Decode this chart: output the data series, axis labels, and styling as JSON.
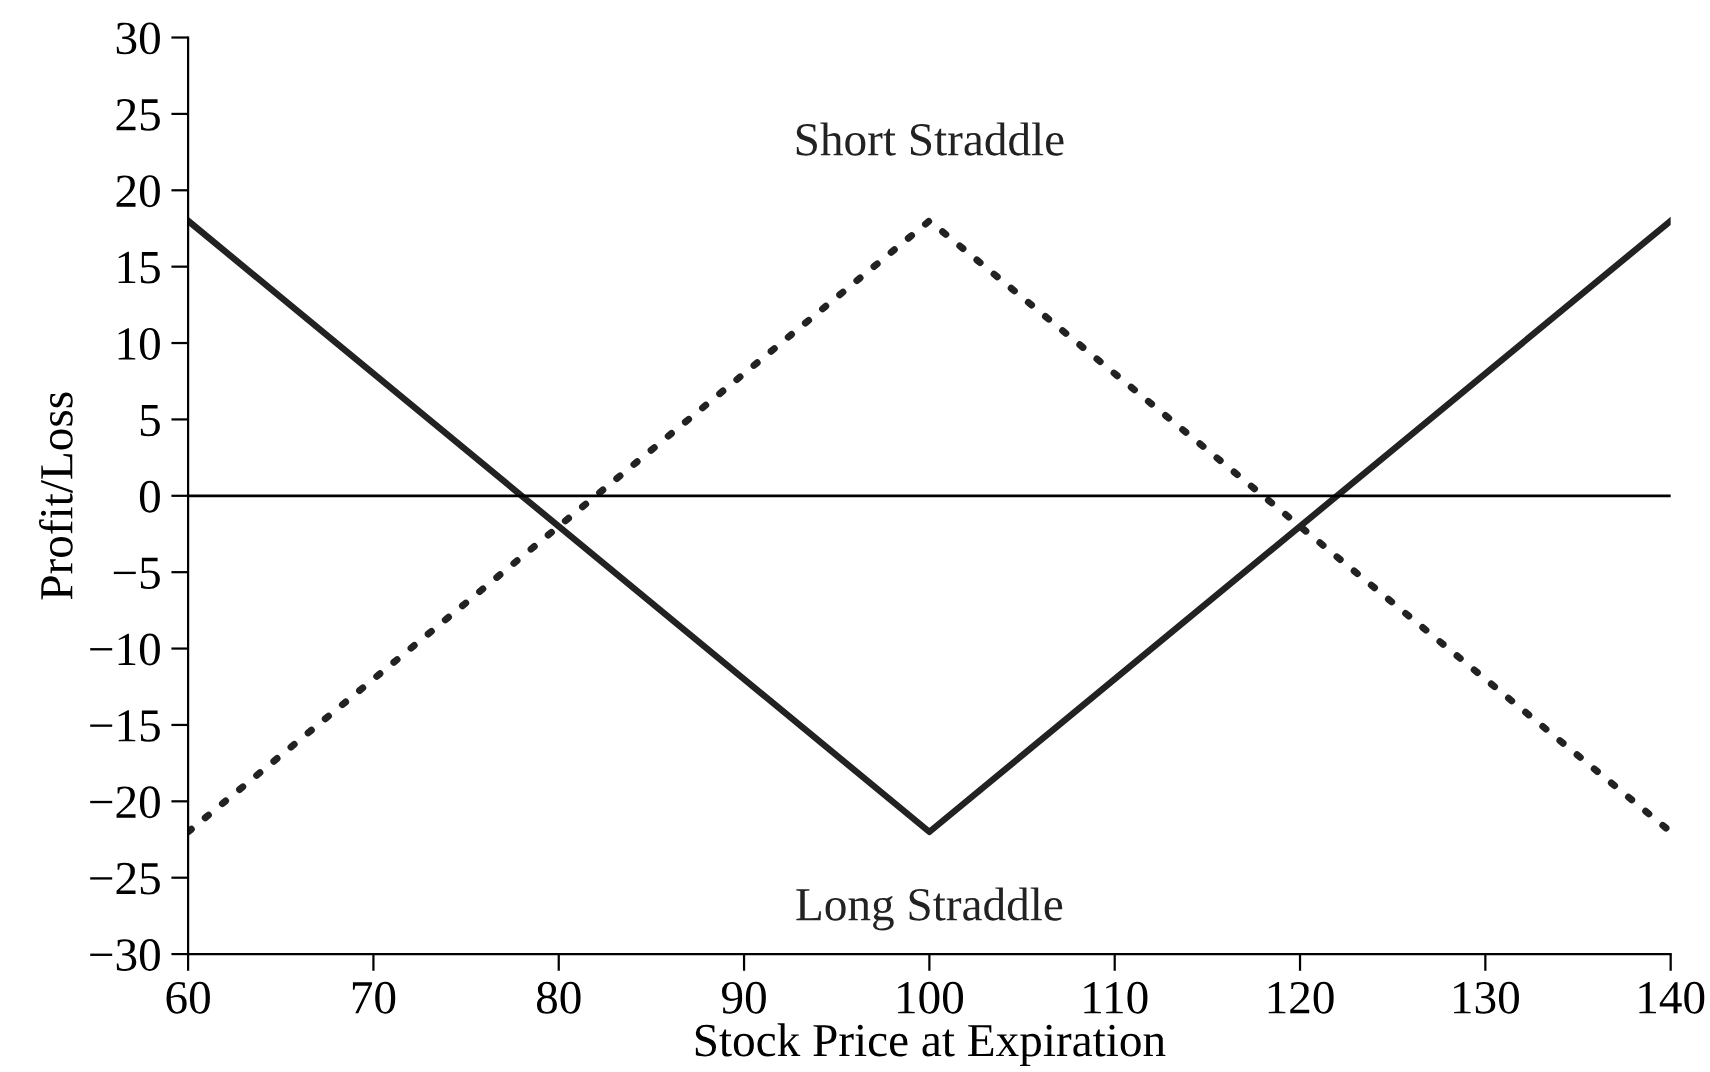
{
  "chart_data": {
    "type": "line",
    "x": [
      60,
      100,
      140
    ],
    "series": [
      {
        "name": "Long Straddle",
        "color": "#222222",
        "values": [
          18,
          -22,
          18
        ],
        "line_style": "solid"
      },
      {
        "name": "Short Straddle",
        "color": "#222222",
        "values": [
          -22,
          18,
          -22
        ],
        "line_style": "dotted"
      }
    ],
    "xlabel": "Stock Price at Expiration",
    "ylabel": "Profit/Loss",
    "xlim": [
      60,
      140
    ],
    "ylim": [
      -30,
      30
    ],
    "xticks": [
      60,
      70,
      80,
      90,
      100,
      110,
      120,
      130,
      140
    ],
    "yticks": [
      {
        "value": -30,
        "label": "−30"
      },
      {
        "value": -25,
        "label": "−25"
      },
      {
        "value": -20,
        "label": "−20"
      },
      {
        "value": -15,
        "label": "−15"
      },
      {
        "value": -10,
        "label": "−10"
      },
      {
        "value": -5,
        "label": "−5"
      },
      0,
      5,
      10,
      15,
      20,
      25,
      30
    ],
    "ref_lines": [
      {
        "axis": "y",
        "value": 0,
        "color": "#000000"
      }
    ],
    "grid": false,
    "legend": false,
    "marker": "none"
  }
}
